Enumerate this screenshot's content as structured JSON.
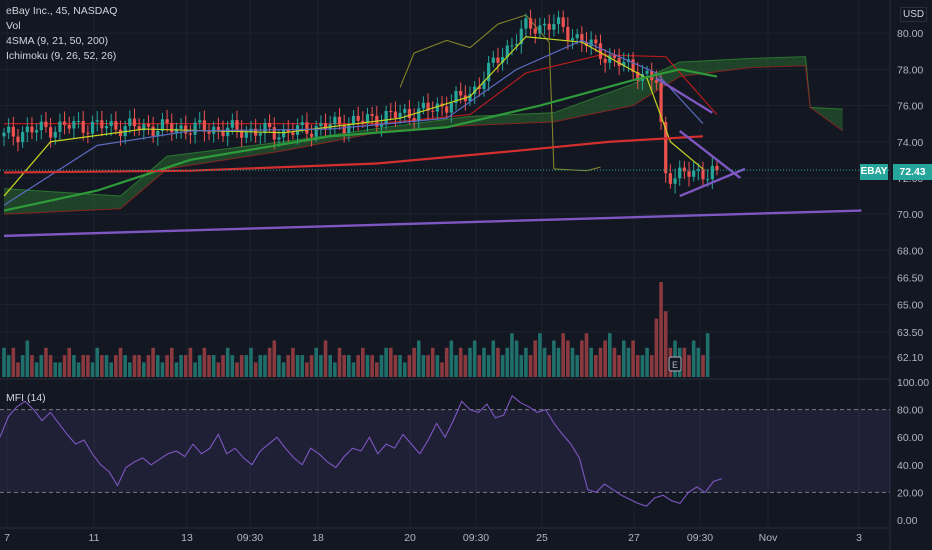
{
  "header": {
    "symbol_line": "eBay Inc., 45, NASDAQ",
    "indicators": [
      "Vol",
      "4SMA (9, 21, 50, 200)",
      "Ichimoku (9, 26, 52, 26)"
    ],
    "currency": "USD"
  },
  "price_tag": {
    "ticker": "EBAY",
    "value": "72.43",
    "color": "#26a69a"
  },
  "colors": {
    "up": "#26a69a",
    "down": "#ef5350",
    "sma9": "#c6d421",
    "sma21": "#5c6bc0",
    "sma50": "#2e9b3a",
    "sma200": "#d32f2f",
    "ichimoku_lagging": "#8c8a2a",
    "ichimoku_base": "#b71c1c",
    "cloud_bull": "#2e7d32",
    "cloud_bear": "#8e2424",
    "trendline": "#7e57c2",
    "mfi": "#7e57c2",
    "volume_up": "#1f6f6b",
    "volume_down": "#8a3a3f"
  },
  "chart_data": [
    {
      "type": "candlestick",
      "title": "eBay Inc., 45, NASDAQ",
      "ylim": [
        61.5,
        81.5
      ],
      "y_ticks": [
        "80.00",
        "78.00",
        "76.00",
        "74.00",
        "72.00",
        "70.00",
        "68.00",
        "66.50",
        "65.00",
        "63.50",
        "62.10"
      ],
      "x_ticks": [
        "7",
        "11",
        "13",
        "09:30",
        "18",
        "20",
        "09:30",
        "25",
        "27",
        "09:30",
        "Nov",
        "3"
      ],
      "last_price": 72.43,
      "anchors": [
        {
          "bar": 0,
          "price": 74.3
        },
        {
          "bar": 5,
          "price": 74.6
        },
        {
          "bar": 15,
          "price": 74.9
        },
        {
          "bar": 30,
          "price": 74.8
        },
        {
          "bar": 45,
          "price": 74.7
        },
        {
          "bar": 60,
          "price": 74.5
        },
        {
          "bar": 70,
          "price": 74.9
        },
        {
          "bar": 80,
          "price": 75.3
        },
        {
          "bar": 92,
          "price": 75.8
        },
        {
          "bar": 100,
          "price": 76.6
        },
        {
          "bar": 106,
          "price": 78.6
        },
        {
          "bar": 112,
          "price": 80.3
        },
        {
          "bar": 118,
          "price": 80.5
        },
        {
          "bar": 124,
          "price": 79.6
        },
        {
          "bar": 130,
          "price": 78.6
        },
        {
          "bar": 136,
          "price": 77.9
        },
        {
          "bar": 140,
          "price": 77.3
        },
        {
          "bar": 142,
          "price": 72.2
        },
        {
          "bar": 146,
          "price": 72.2
        },
        {
          "bar": 150,
          "price": 72.3
        },
        {
          "bar": 153,
          "price": 72.43
        }
      ],
      "sma_lines": [
        {
          "name": "SMA 9",
          "points": [
            [
              0,
              71.0
            ],
            [
              10,
              74.0
            ],
            [
              30,
              74.7
            ],
            [
              60,
              74.5
            ],
            [
              85,
              75.3
            ],
            [
              100,
              76.5
            ],
            [
              112,
              79.8
            ],
            [
              124,
              79.5
            ],
            [
              138,
              77.5
            ],
            [
              143,
              74.0
            ],
            [
              150,
              72.5
            ]
          ]
        },
        {
          "name": "SMA 21",
          "points": [
            [
              0,
              70.5
            ],
            [
              20,
              73.8
            ],
            [
              40,
              74.6
            ],
            [
              70,
              74.7
            ],
            [
              95,
              75.3
            ],
            [
              110,
              78.0
            ],
            [
              124,
              79.6
            ],
            [
              140,
              77.8
            ],
            [
              150,
              75.0
            ]
          ]
        },
        {
          "name": "SMA 50",
          "points": [
            [
              0,
              70.2
            ],
            [
              20,
              71.3
            ],
            [
              40,
              73.0
            ],
            [
              70,
              74.3
            ],
            [
              95,
              74.8
            ],
            [
              115,
              76.0
            ],
            [
              135,
              77.4
            ],
            [
              145,
              78.0
            ],
            [
              153,
              77.6
            ]
          ]
        },
        {
          "name": "SMA 200",
          "points": [
            [
              0,
              72.3
            ],
            [
              40,
              72.4
            ],
            [
              80,
              72.8
            ],
            [
              110,
              73.5
            ],
            [
              130,
              74.0
            ],
            [
              150,
              74.3
            ]
          ]
        }
      ],
      "ichimoku": {
        "base_points": [
          [
            0,
            75.0
          ],
          [
            40,
            75.0
          ],
          [
            80,
            75.0
          ],
          [
            100,
            75.5
          ],
          [
            112,
            77.8
          ],
          [
            128,
            78.8
          ],
          [
            142,
            78.7
          ],
          [
            153,
            75.5
          ]
        ],
        "lagging_points": [
          [
            85,
            77.0
          ],
          [
            88,
            78.9
          ],
          [
            95,
            79.6
          ],
          [
            100,
            79.2
          ],
          [
            106,
            80.5
          ],
          [
            112,
            81.0
          ],
          [
            117,
            79.5
          ],
          [
            118,
            72.5
          ],
          [
            125,
            72.4
          ],
          [
            128,
            72.6
          ]
        ],
        "span_a": [
          [
            0,
            71.4
          ],
          [
            25,
            71.0
          ],
          [
            35,
            73.2
          ],
          [
            60,
            74.0
          ],
          [
            82,
            74.8
          ],
          [
            100,
            75.4
          ],
          [
            118,
            75.6
          ],
          [
            135,
            77.2
          ],
          [
            145,
            78.4
          ],
          [
            160,
            78.6
          ],
          [
            172,
            78.7
          ],
          [
            173,
            75.9
          ],
          [
            180,
            75.8
          ]
        ],
        "span_b": [
          [
            0,
            70.0
          ],
          [
            25,
            70.3
          ],
          [
            35,
            72.5
          ],
          [
            60,
            73.5
          ],
          [
            82,
            74.6
          ],
          [
            100,
            74.9
          ],
          [
            118,
            75.1
          ],
          [
            135,
            76.0
          ],
          [
            145,
            77.6
          ],
          [
            160,
            78.1
          ],
          [
            172,
            78.2
          ],
          [
            173,
            75.9
          ],
          [
            180,
            74.6
          ]
        ]
      },
      "trendlines": [
        {
          "name": "long support",
          "points": [
            [
              0,
              68.8
            ],
            [
              184,
              70.2
            ]
          ]
        },
        {
          "name": "triangle upper",
          "points": [
            [
              145,
              74.6
            ],
            [
              158,
              72.0
            ]
          ]
        },
        {
          "name": "triangle lower",
          "points": [
            [
              145,
              71.0
            ],
            [
              159,
              72.5
            ]
          ]
        },
        {
          "name": "channel",
          "points": [
            [
              140,
              77.5
            ],
            [
              152,
              75.6
            ]
          ]
        }
      ]
    },
    {
      "type": "bar",
      "title": "Vol",
      "series": [
        {
          "name": "Vol",
          "values": [
            4,
            3,
            4,
            2,
            3,
            5,
            3,
            2,
            3,
            4,
            3,
            2,
            2,
            3,
            4,
            3,
            2,
            3,
            3,
            2,
            4,
            3,
            3,
            2,
            3,
            4,
            3,
            2,
            3,
            3,
            2,
            3,
            4,
            3,
            2,
            3,
            4,
            2,
            3,
            3,
            4,
            2,
            3,
            4,
            3,
            3,
            2,
            3,
            4,
            3,
            2,
            3,
            3,
            4,
            2,
            3,
            3,
            4,
            5,
            3,
            2,
            3,
            4,
            3,
            3,
            2,
            3,
            4,
            3,
            5,
            3,
            2,
            4,
            3,
            3,
            2,
            3,
            4,
            3,
            3,
            2,
            3,
            4,
            4,
            3,
            3,
            2,
            3,
            4,
            5,
            3,
            3,
            4,
            3,
            2,
            4,
            5,
            3,
            4,
            3,
            4,
            5,
            3,
            4,
            3,
            5,
            4,
            3,
            4,
            6,
            5,
            3,
            4,
            3,
            5,
            6,
            4,
            3,
            5,
            4,
            6,
            5,
            4,
            3,
            5,
            6,
            4,
            3,
            4,
            5,
            6,
            4,
            3,
            5,
            4,
            5,
            3,
            3,
            4,
            3,
            8,
            13,
            9,
            4,
            5,
            4,
            4,
            3,
            5,
            4,
            3,
            6
          ]
        }
      ],
      "max_value": 13
    },
    {
      "type": "line",
      "title": "MFI (14)",
      "ylim": [
        0,
        100
      ],
      "y_ticks": [
        "100.00",
        "80.00",
        "60.00",
        "40.00",
        "20.00",
        "0.00"
      ],
      "levels": [
        80,
        20
      ],
      "series": [
        {
          "name": "MFI (14)",
          "values": [
            60,
            75,
            82,
            86,
            80,
            72,
            78,
            70,
            62,
            55,
            58,
            48,
            40,
            35,
            25,
            38,
            42,
            45,
            40,
            44,
            48,
            50,
            46,
            55,
            48,
            52,
            62,
            48,
            52,
            45,
            40,
            50,
            55,
            60,
            52,
            45,
            40,
            52,
            48,
            42,
            38,
            46,
            52,
            50,
            60,
            48,
            55,
            52,
            62,
            55,
            48,
            58,
            70,
            60,
            72,
            86,
            80,
            78,
            84,
            74,
            76,
            90,
            85,
            82,
            78,
            80,
            70,
            62,
            55,
            45,
            22,
            20,
            26,
            22,
            18,
            15,
            12,
            10,
            16,
            18,
            14,
            12,
            20,
            24,
            20,
            28,
            30
          ]
        }
      ]
    }
  ]
}
